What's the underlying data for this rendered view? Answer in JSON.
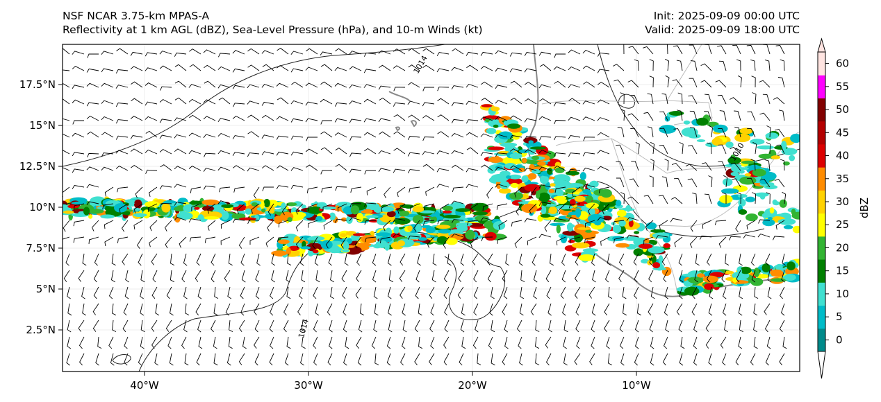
{
  "header": {
    "model": "NSF NCAR 3.75-km MPAS-A",
    "fields": "Reflectivity at 1 km AGL (dBZ), Sea-Level Pressure (hPa), and 10-m Winds (kt)",
    "init": "Init: 2025-09-09 00:00 UTC",
    "valid": "Valid: 2025-09-09 18:00 UTC"
  },
  "map": {
    "lat_ticks": [
      "17.5°N",
      "15°N",
      "12.5°N",
      "10°N",
      "7.5°N",
      "5°N",
      "2.5°N"
    ],
    "lon_ticks": [
      "40°W",
      "30°W",
      "20°W",
      "10°W"
    ],
    "isobar_labels": [
      "1014",
      "1014",
      "1010"
    ]
  },
  "colorbar": {
    "label": "dBZ",
    "ticks": [
      "0",
      "5",
      "10",
      "15",
      "20",
      "25",
      "30",
      "35",
      "40",
      "45",
      "50",
      "55",
      "60"
    ],
    "colors": [
      "#008a8a",
      "#00bcc8",
      "#40e0d0",
      "#008000",
      "#32b432",
      "#ffff00",
      "#ffd200",
      "#ff8c00",
      "#dc0000",
      "#b40000",
      "#820000",
      "#ff00ff",
      "#ffe4e1"
    ]
  }
}
